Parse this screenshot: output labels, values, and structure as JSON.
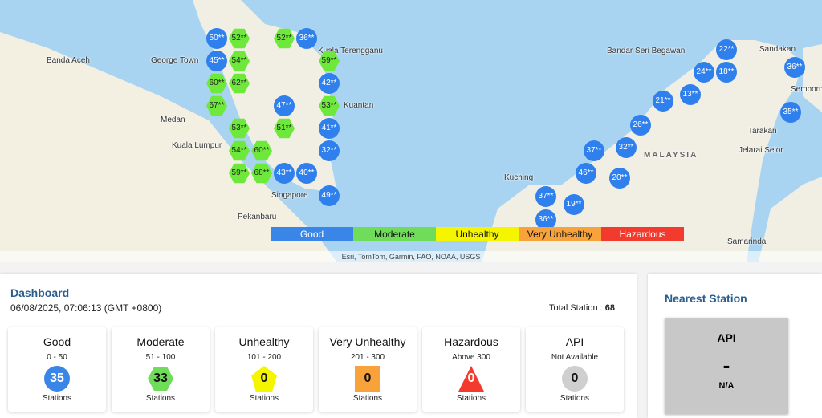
{
  "map": {
    "places": [
      "Banda Aceh",
      "Medan",
      "Pekanbaru",
      "George Town",
      "Kuala Terengganu",
      "Kuantan",
      "Kuala Lumpur",
      "Singapore",
      "Kuching",
      "Sandakan",
      "Bandar Seri Begawan",
      "MALAYSIA",
      "Tarakan",
      "Semporna",
      "Jelarai Selor",
      "Samarinda"
    ],
    "markers": [
      {
        "v": "50**",
        "c": "good"
      },
      {
        "v": "36**",
        "c": "good"
      },
      {
        "v": "45**",
        "c": "good"
      },
      {
        "v": "42**",
        "c": "good"
      },
      {
        "v": "47**",
        "c": "good"
      },
      {
        "v": "41**",
        "c": "good"
      },
      {
        "v": "32**",
        "c": "good"
      },
      {
        "v": "43**",
        "c": "good"
      },
      {
        "v": "40**",
        "c": "good"
      },
      {
        "v": "49**",
        "c": "good"
      },
      {
        "v": "22**",
        "c": "good"
      },
      {
        "v": "18**",
        "c": "good"
      },
      {
        "v": "24**",
        "c": "good"
      },
      {
        "v": "13**",
        "c": "good"
      },
      {
        "v": "21**",
        "c": "good"
      },
      {
        "v": "26**",
        "c": "good"
      },
      {
        "v": "32**",
        "c": "good"
      },
      {
        "v": "37**",
        "c": "good"
      },
      {
        "v": "46**",
        "c": "good"
      },
      {
        "v": "20**",
        "c": "good"
      },
      {
        "v": "37**",
        "c": "good"
      },
      {
        "v": "36**",
        "c": "good"
      },
      {
        "v": "19**",
        "c": "good"
      },
      {
        "v": "36**",
        "c": "good"
      },
      {
        "v": "35**",
        "c": "good"
      },
      {
        "v": "52**",
        "c": "mod"
      },
      {
        "v": "52**",
        "c": "mod"
      },
      {
        "v": "54**",
        "c": "mod"
      },
      {
        "v": "59**",
        "c": "mod"
      },
      {
        "v": "60**",
        "c": "mod"
      },
      {
        "v": "62**",
        "c": "mod"
      },
      {
        "v": "67**",
        "c": "mod"
      },
      {
        "v": "53**",
        "c": "mod"
      },
      {
        "v": "53**",
        "c": "mod"
      },
      {
        "v": "51**",
        "c": "mod"
      },
      {
        "v": "54**",
        "c": "mod"
      },
      {
        "v": "60**",
        "c": "mod"
      },
      {
        "v": "59**",
        "c": "mod"
      },
      {
        "v": "68**",
        "c": "mod"
      }
    ],
    "legend": [
      {
        "label": "Good",
        "color": "#3a86e8"
      },
      {
        "label": "Moderate",
        "color": "#6fdc5a"
      },
      {
        "label": "Unhealthy",
        "color": "#f5f500"
      },
      {
        "label": "Very Unhealthy",
        "color": "#f7a23a"
      },
      {
        "label": "Hazardous",
        "color": "#f23b2e"
      }
    ],
    "attribution": "Esri, TomTom, Garmin, FAO, NOAA, USGS"
  },
  "dashboard": {
    "title": "Dashboard",
    "datetime": "06/08/2025, 07:06:13 (GMT +0800)",
    "total_label": "Total Station : ",
    "total": "68",
    "cards": [
      {
        "title": "Good",
        "range": "0 - 50",
        "count": "35",
        "unit": "Stations",
        "color": "#3a86e8",
        "shape": "circle"
      },
      {
        "title": "Moderate",
        "range": "51 - 100",
        "count": "33",
        "unit": "Stations",
        "color": "#6fdc5a",
        "shape": "hexagon"
      },
      {
        "title": "Unhealthy",
        "range": "101 - 200",
        "count": "0",
        "unit": "Stations",
        "color": "#f5f500",
        "shape": "pentagon"
      },
      {
        "title": "Very Unhealthy",
        "range": "201 - 300",
        "count": "0",
        "unit": "Stations",
        "color": "#f7a23a",
        "shape": "square"
      },
      {
        "title": "Hazardous",
        "range": "Above 300",
        "count": "0",
        "unit": "Stations",
        "color": "#f23b2e",
        "shape": "triangle"
      },
      {
        "title": "API",
        "range": "Not Available",
        "count": "0",
        "unit": "Stations",
        "color": "#cfcfcf",
        "shape": "circle"
      }
    ]
  },
  "nearest": {
    "title": "Nearest Station",
    "api_label": "API",
    "value": "-",
    "status": "N/A"
  }
}
